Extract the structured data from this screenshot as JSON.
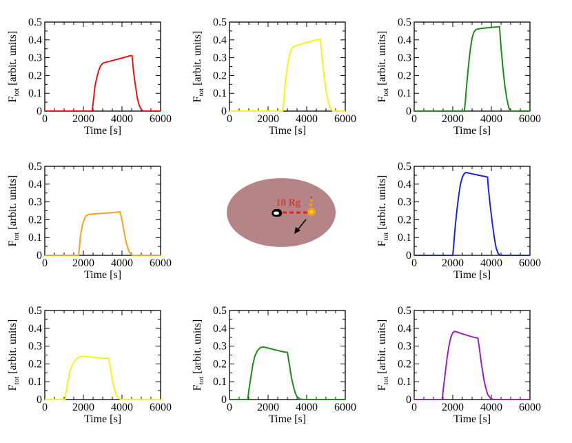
{
  "chart_data": [
    {
      "type": "line",
      "color": "#e8141b",
      "xlabel": "Time [s]",
      "ylabel_main": "F",
      "ylabel_sub": "tot",
      "ylabel_rest": "  [arbit. units]",
      "xlim": [
        0,
        6000
      ],
      "ylim": [
        0,
        0.5
      ],
      "xticks": [
        "0",
        "2000",
        "4000",
        "6000"
      ],
      "yticks": [
        "0",
        "0.1",
        "0.2",
        "0.3",
        "0.4",
        "0.5"
      ],
      "x": [
        0,
        2450,
        2500,
        2550,
        2600,
        2700,
        2800,
        2900,
        3000,
        3100,
        3300,
        3600,
        4000,
        4400,
        4520,
        4600,
        4700,
        4800,
        4900,
        5000,
        5100,
        6000
      ],
      "y": [
        0,
        0,
        0.04,
        0.09,
        0.14,
        0.19,
        0.23,
        0.255,
        0.268,
        0.273,
        0.278,
        0.287,
        0.298,
        0.31,
        0.312,
        0.22,
        0.14,
        0.07,
        0.03,
        0.01,
        0,
        0
      ]
    },
    {
      "type": "line",
      "color": "#f5f31a",
      "xlabel": "Time [s]",
      "ylabel_main": "F",
      "ylabel_sub": "tot",
      "ylabel_rest": "  [arbit. units]",
      "xlim": [
        0,
        6000
      ],
      "ylim": [
        0,
        0.5
      ],
      "xticks": [
        "0",
        "2000",
        "4000",
        "6000"
      ],
      "yticks": [
        "0",
        "0.1",
        "0.2",
        "0.3",
        "0.4",
        "0.5"
      ],
      "x": [
        0,
        2750,
        2800,
        2850,
        2900,
        3000,
        3100,
        3200,
        3300,
        3450,
        3700,
        4100,
        4500,
        4700,
        4800,
        4900,
        5000,
        5100,
        5200,
        5350,
        6000
      ],
      "y": [
        0,
        0,
        0.04,
        0.1,
        0.17,
        0.25,
        0.31,
        0.345,
        0.36,
        0.368,
        0.376,
        0.388,
        0.4,
        0.405,
        0.3,
        0.2,
        0.12,
        0.06,
        0.02,
        0,
        0
      ]
    },
    {
      "type": "line",
      "color": "#1e8a1e",
      "xlabel": "Time [s]",
      "ylabel_main": "F",
      "ylabel_sub": "tot",
      "ylabel_rest": "  [arbit. units]",
      "xlim": [
        0,
        6000
      ],
      "ylim": [
        0,
        0.5
      ],
      "xticks": [
        "0",
        "2000",
        "4000",
        "6000"
      ],
      "yticks": [
        "0",
        "0.1",
        "0.2",
        "0.3",
        "0.4",
        "0.5"
      ],
      "x": [
        0,
        2600,
        2650,
        2700,
        2800,
        2900,
        3000,
        3100,
        3200,
        3400,
        3700,
        4000,
        4300,
        4420,
        4500,
        4600,
        4700,
        4800,
        4900,
        5000,
        6000
      ],
      "y": [
        0,
        0,
        0.05,
        0.12,
        0.24,
        0.34,
        0.41,
        0.445,
        0.458,
        0.463,
        0.467,
        0.47,
        0.473,
        0.475,
        0.36,
        0.24,
        0.14,
        0.07,
        0.02,
        0,
        0
      ]
    },
    {
      "type": "line",
      "color": "#f5a01e",
      "xlabel": "Time [s]",
      "ylabel_main": "F",
      "ylabel_sub": "tot",
      "ylabel_rest": "  [arbit. units]",
      "xlim": [
        0,
        6000
      ],
      "ylim": [
        0,
        0.5
      ],
      "xticks": [
        "0",
        "2000",
        "4000",
        "6000"
      ],
      "yticks": [
        "0",
        "0.1",
        "0.2",
        "0.3",
        "0.4",
        "0.5"
      ],
      "x": [
        0,
        1750,
        1800,
        1850,
        1950,
        2050,
        2150,
        2300,
        2600,
        3000,
        3500,
        3900,
        4000,
        4100,
        4200,
        4300,
        4400,
        4550,
        6000
      ],
      "y": [
        0,
        0,
        0.05,
        0.11,
        0.17,
        0.205,
        0.222,
        0.23,
        0.233,
        0.236,
        0.24,
        0.244,
        0.2,
        0.14,
        0.08,
        0.04,
        0.015,
        0,
        0
      ]
    },
    {
      "type": "line",
      "color": "#1c22e0",
      "xlabel": "Time [s]",
      "ylabel_main": "F",
      "ylabel_sub": "tot",
      "ylabel_rest": "  [arbit. units]",
      "xlim": [
        0,
        6000
      ],
      "ylim": [
        0,
        0.5
      ],
      "xticks": [
        "0",
        "2000",
        "4000",
        "6000"
      ],
      "yticks": [
        "0",
        "0.1",
        "0.2",
        "0.3",
        "0.4",
        "0.5"
      ],
      "x": [
        0,
        2000,
        2050,
        2100,
        2200,
        2300,
        2400,
        2500,
        2600,
        2700,
        2900,
        3200,
        3500,
        3800,
        3850,
        3950,
        4050,
        4150,
        4250,
        4350,
        4450,
        6000
      ],
      "y": [
        0,
        0,
        0.06,
        0.13,
        0.24,
        0.33,
        0.4,
        0.44,
        0.46,
        0.465,
        0.46,
        0.453,
        0.446,
        0.44,
        0.37,
        0.27,
        0.18,
        0.1,
        0.04,
        0.01,
        0,
        0
      ]
    },
    {
      "type": "line",
      "color": "#f5f31a",
      "xlabel": "Time [s]",
      "ylabel_main": "F",
      "ylabel_sub": "tot",
      "ylabel_rest": "  [arbit. units]",
      "xlim": [
        0,
        6000
      ],
      "ylim": [
        0,
        0.5
      ],
      "xticks": [
        "0",
        "2000",
        "4000",
        "6000"
      ],
      "yticks": [
        "0",
        "0.1",
        "0.2",
        "0.3",
        "0.4",
        "0.5"
      ],
      "x": [
        0,
        1050,
        1100,
        1200,
        1300,
        1450,
        1600,
        1800,
        2000,
        2300,
        2700,
        3100,
        3300,
        3400,
        3500,
        3600,
        3700,
        3800,
        3950,
        6000
      ],
      "y": [
        0,
        0,
        0.04,
        0.1,
        0.16,
        0.2,
        0.225,
        0.24,
        0.243,
        0.24,
        0.235,
        0.232,
        0.233,
        0.18,
        0.11,
        0.06,
        0.025,
        0.008,
        0,
        0
      ]
    },
    {
      "type": "line",
      "color": "#1e8a1e",
      "xlabel": "Time [s]",
      "ylabel_main": "F",
      "ylabel_sub": "tot",
      "ylabel_rest": "  [arbit. units]",
      "xlim": [
        0,
        6000
      ],
      "ylim": [
        0,
        0.5
      ],
      "xticks": [
        "0",
        "2000",
        "4000",
        "6000"
      ],
      "yticks": [
        "0",
        "0.1",
        "0.2",
        "0.3",
        "0.4",
        "0.5"
      ],
      "x": [
        0,
        950,
        1000,
        1100,
        1200,
        1300,
        1450,
        1600,
        1750,
        2000,
        2400,
        2800,
        3000,
        3100,
        3200,
        3300,
        3400,
        3500,
        3650,
        3800,
        6000
      ],
      "y": [
        0,
        0,
        0.05,
        0.12,
        0.19,
        0.24,
        0.275,
        0.292,
        0.295,
        0.289,
        0.278,
        0.268,
        0.265,
        0.2,
        0.13,
        0.08,
        0.04,
        0.015,
        0.003,
        0,
        0
      ]
    },
    {
      "type": "line",
      "color": "#9a20c0",
      "xlabel": "Time [s]",
      "ylabel_main": "F",
      "ylabel_sub": "tot",
      "ylabel_rest": "  [arbit. units]",
      "xlim": [
        0,
        6000
      ],
      "ylim": [
        0,
        0.5
      ],
      "xticks": [
        "0",
        "2000",
        "4000",
        "6000"
      ],
      "yticks": [
        "0",
        "0.1",
        "0.2",
        "0.3",
        "0.4",
        "0.5"
      ],
      "x": [
        0,
        1450,
        1500,
        1600,
        1700,
        1800,
        1900,
        2000,
        2100,
        2200,
        2400,
        2700,
        3000,
        3300,
        3400,
        3500,
        3600,
        3700,
        3800,
        3950,
        4100,
        6000
      ],
      "y": [
        0,
        0,
        0.05,
        0.14,
        0.23,
        0.3,
        0.35,
        0.375,
        0.383,
        0.38,
        0.372,
        0.362,
        0.352,
        0.345,
        0.27,
        0.19,
        0.12,
        0.07,
        0.03,
        0.008,
        0,
        0
      ]
    }
  ],
  "diagram": {
    "distance_label": "18 Rg",
    "disk_color": "#b48486",
    "orbit_color": "#e0231b",
    "source_color": "#f5a01e"
  }
}
